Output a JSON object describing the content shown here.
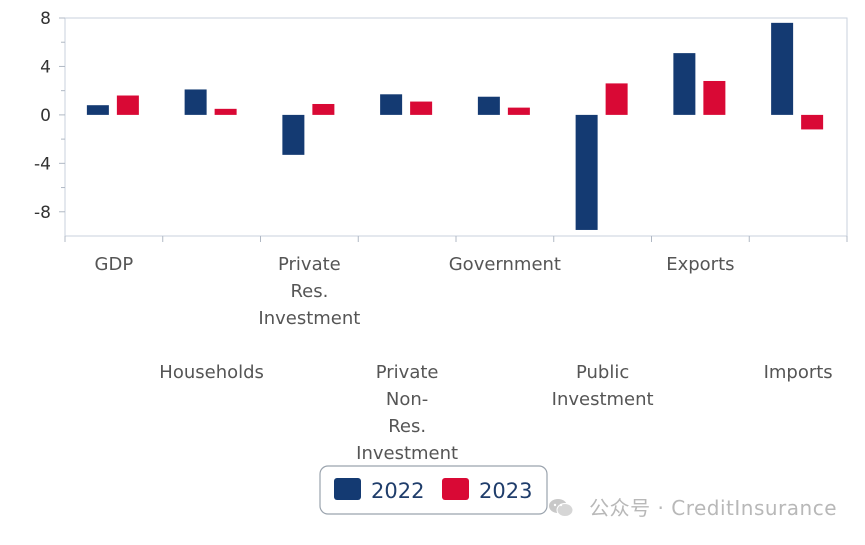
{
  "chart_data": {
    "type": "bar",
    "categories": [
      "GDP",
      "Households",
      "Private Res. Investment",
      "Private Non-Res. Investment",
      "Government",
      "Public Investment",
      "Exports",
      "Imports"
    ],
    "category_label_lines": [
      [
        "GDP"
      ],
      [
        "Households"
      ],
      [
        "Private",
        "Res.",
        "Investment"
      ],
      [
        "Private",
        "Non-",
        "Res.",
        "Investment"
      ],
      [
        "Government"
      ],
      [
        "Public",
        "Investment"
      ],
      [
        "Exports"
      ],
      [
        "Imports"
      ]
    ],
    "series": [
      {
        "name": "2022",
        "color": "#143a72",
        "values": [
          0.8,
          2.1,
          -3.3,
          1.7,
          1.5,
          -9.5,
          5.1,
          7.6
        ]
      },
      {
        "name": "2023",
        "color": "#d90935",
        "values": [
          1.6,
          0.5,
          0.9,
          1.1,
          0.6,
          2.6,
          2.8,
          -1.2
        ]
      }
    ],
    "yticks": [
      8,
      4,
      0,
      -4,
      -8
    ],
    "ylim": [
      -10,
      8
    ],
    "title": "",
    "xlabel": "",
    "ylabel": "",
    "legend_position": "bottom-center"
  },
  "watermark": {
    "text": "公众号 · CreditInsurance",
    "icon": "wechat-icon"
  }
}
